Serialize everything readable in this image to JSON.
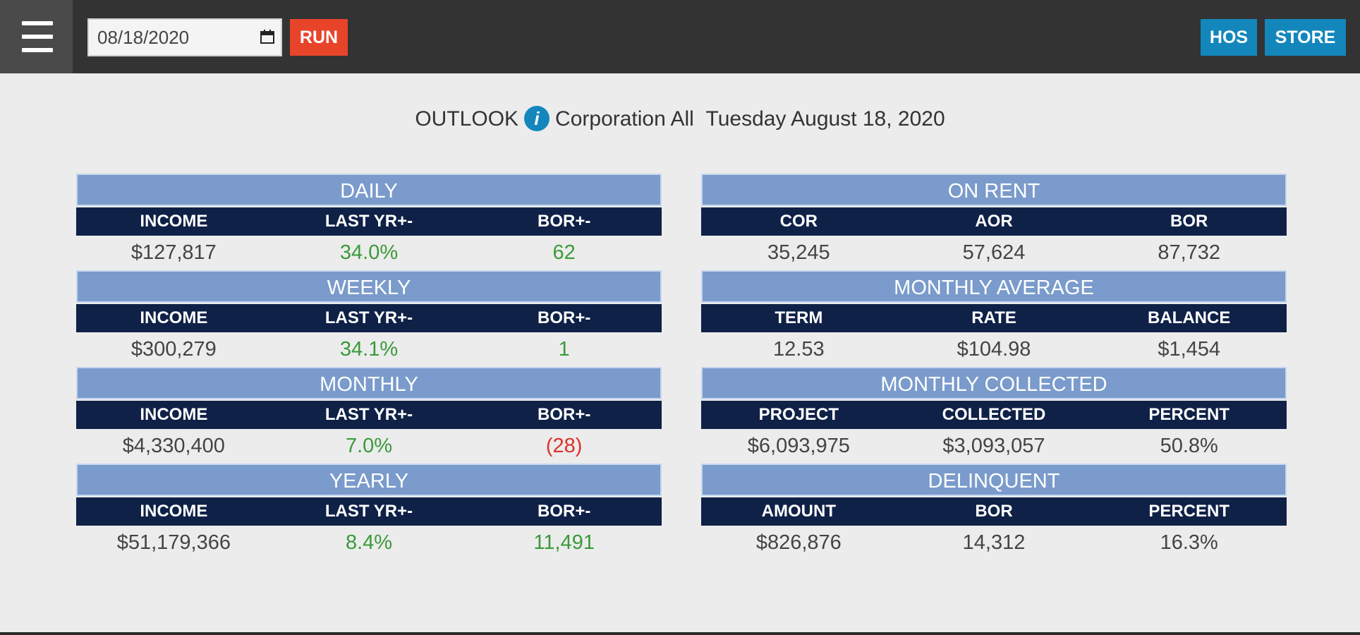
{
  "toolbar": {
    "date_value": "08/18/2020",
    "run_label": "RUN",
    "hos_label": "HOS",
    "store_label": "STORE"
  },
  "header": {
    "outlook": "OUTLOOK",
    "info_icon": "i",
    "scope": "Corporation All",
    "date": "Tuesday August 18, 2020"
  },
  "colors": {
    "positive": "#3a9a3a",
    "negative": "#e0302a",
    "section_title_bg": "#7a9bcb",
    "column_header_bg": "#0f2147",
    "accent": "#1387bc",
    "run": "#e8442a"
  },
  "left": {
    "daily": {
      "title": "DAILY",
      "headers": [
        "INCOME",
        "LAST YR+-",
        "BOR+-"
      ],
      "values": [
        "$127,817",
        "34.0%",
        "62"
      ]
    },
    "weekly": {
      "title": "WEEKLY",
      "headers": [
        "INCOME",
        "LAST YR+-",
        "BOR+-"
      ],
      "values": [
        "$300,279",
        "34.1%",
        "1"
      ]
    },
    "monthly": {
      "title": "MONTHLY",
      "headers": [
        "INCOME",
        "LAST YR+-",
        "BOR+-"
      ],
      "values": [
        "$4,330,400",
        "7.0%",
        "(28)"
      ]
    },
    "yearly": {
      "title": "YEARLY",
      "headers": [
        "INCOME",
        "LAST YR+-",
        "BOR+-"
      ],
      "values": [
        "$51,179,366",
        "8.4%",
        "11,491"
      ]
    }
  },
  "right": {
    "on_rent": {
      "title": "ON RENT",
      "headers": [
        "COR",
        "AOR",
        "BOR"
      ],
      "values": [
        "35,245",
        "57,624",
        "87,732"
      ]
    },
    "monthly_average": {
      "title": "MONTHLY AVERAGE",
      "headers": [
        "TERM",
        "RATE",
        "BALANCE"
      ],
      "values": [
        "12.53",
        "$104.98",
        "$1,454"
      ]
    },
    "monthly_collected": {
      "title": "MONTHLY COLLECTED",
      "headers": [
        "PROJECT",
        "COLLECTED",
        "PERCENT"
      ],
      "values": [
        "$6,093,975",
        "$3,093,057",
        "50.8%"
      ]
    },
    "delinquent": {
      "title": "DELINQUENT",
      "headers": [
        "AMOUNT",
        "BOR",
        "PERCENT"
      ],
      "values": [
        "$826,876",
        "14,312",
        "16.3%"
      ]
    }
  }
}
